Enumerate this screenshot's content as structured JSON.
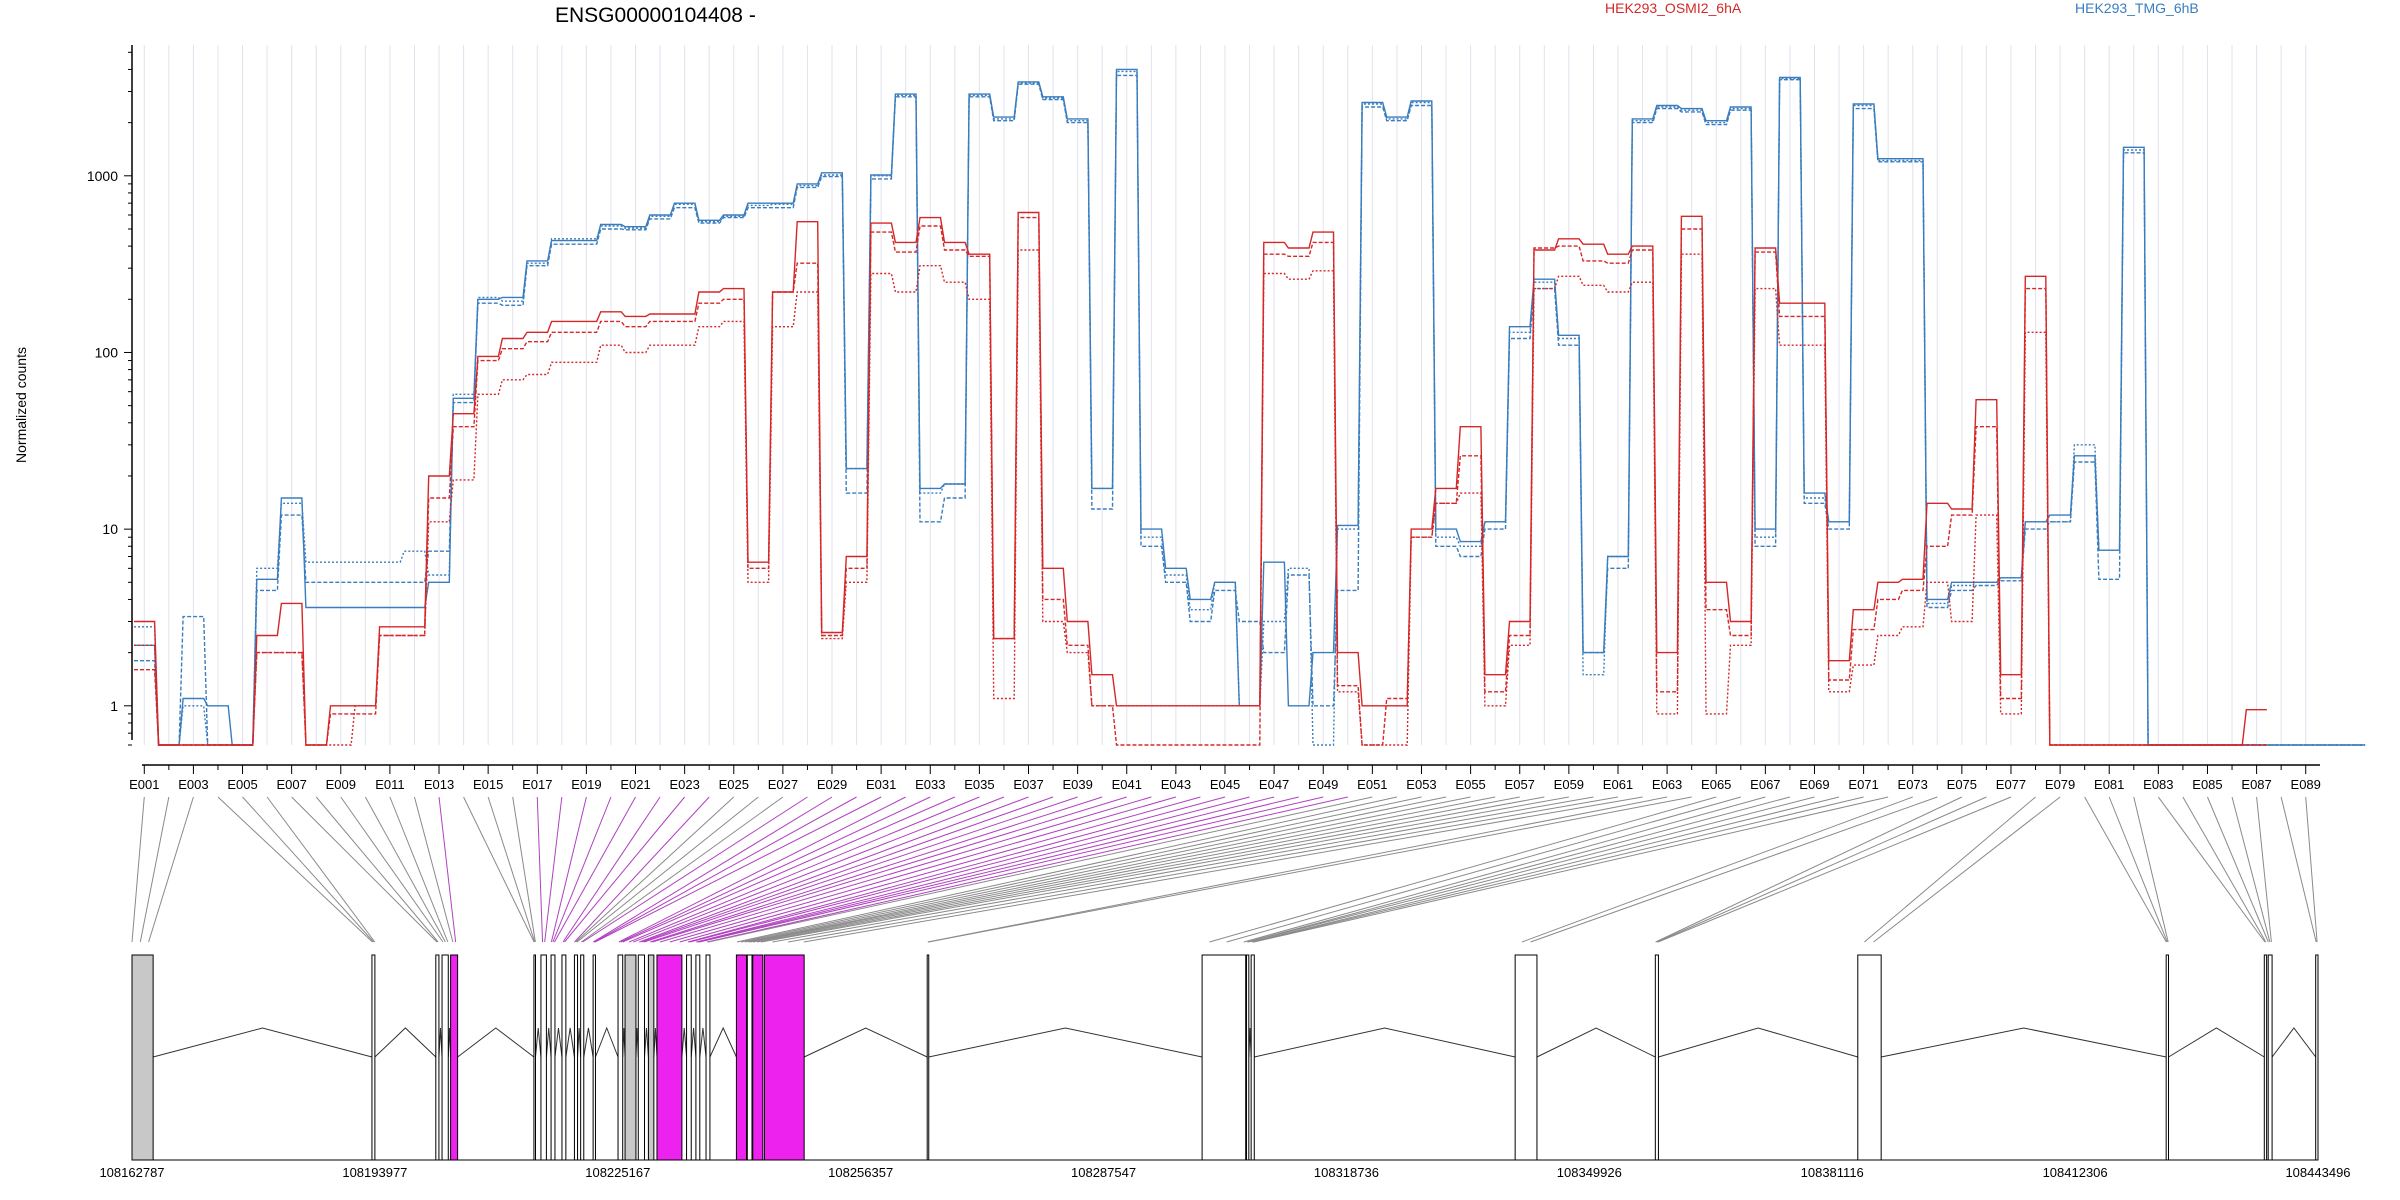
{
  "chart_data": {
    "type": "line",
    "title": "ENSG00000104408 -",
    "ylabel": "Normalized counts",
    "yscale": "log",
    "ylim": [
      0.6,
      5500
    ],
    "yticks": [
      1,
      10,
      100,
      1000
    ],
    "ytick_labels": [
      "1",
      "10",
      "100",
      "1000"
    ],
    "grid": "vertical lines per exon",
    "legend": "top-right",
    "colors": {
      "HEK293_OSMI2_6hA": "#d62728",
      "HEK293_TMG_6hB": "#3a7dbf",
      "highlight": "#ee22ee",
      "exon_fill": "#c8c8c8"
    },
    "exon_labels": [
      "E001",
      "E003",
      "E005",
      "E007",
      "E009",
      "E011",
      "E013",
      "E015",
      "E017",
      "E019",
      "E021",
      "E023",
      "E025",
      "E027",
      "E029",
      "E031",
      "E033",
      "E035",
      "E037",
      "E039",
      "E041",
      "E043",
      "E045",
      "E047",
      "E049",
      "E051",
      "E053",
      "E055",
      "E057",
      "E059",
      "E061",
      "E063",
      "E065",
      "E067",
      "E069",
      "E071",
      "E073",
      "E075",
      "E077",
      "E079",
      "E081",
      "E083",
      "E085",
      "E087",
      "E089"
    ],
    "n_exons": 89,
    "highlight_exons": [
      13,
      17,
      18,
      19,
      20,
      21,
      22,
      23,
      24,
      28,
      29,
      30,
      31,
      32,
      33,
      34,
      35,
      36,
      37,
      38,
      39,
      40,
      41,
      42,
      43,
      44,
      45,
      46,
      47,
      48,
      49,
      50
    ],
    "series": [
      {
        "name": "HEK293_TMG_6hB",
        "color": "#3a7dbf",
        "replicate": 1,
        "values": [
          2.2,
          0.6,
          1.1,
          1.0,
          0.6,
          5.2,
          15,
          3.6,
          3.6,
          3.6,
          3.6,
          3.6,
          5.0,
          55,
          200,
          205,
          330,
          430,
          430,
          530,
          515,
          600,
          700,
          560,
          600,
          700,
          700,
          900,
          1040,
          22,
          1010,
          2900,
          17,
          18,
          2900,
          2150,
          3400,
          2800,
          2100,
          17,
          4000,
          10,
          6,
          4,
          5,
          1,
          6.5,
          1,
          2,
          10.5,
          2600,
          2150,
          2650,
          10,
          8.5,
          11,
          140,
          260,
          125,
          2,
          7,
          2100,
          2500,
          2400,
          2050,
          2450,
          10,
          3600,
          16,
          11,
          2550,
          1250,
          1250,
          4,
          5,
          5,
          5.3,
          11,
          12,
          26,
          7.6,
          1450,
          0.6,
          0.6,
          0.6,
          0.6,
          0.6,
          0.6,
          0.6,
          0.6,
          0.6
        ]
      },
      {
        "name": "HEK293_TMG_6hB",
        "color": "#3a7dbf",
        "replicate": 2,
        "values": [
          1.8,
          0.6,
          3.2,
          0.6,
          0.6,
          4.5,
          12,
          5.0,
          5.0,
          5.0,
          5.0,
          5.0,
          7.5,
          52,
          190,
          185,
          310,
          410,
          410,
          500,
          495,
          570,
          660,
          540,
          580,
          660,
          660,
          860,
          990,
          16,
          960,
          2800,
          11,
          15,
          2800,
          2050,
          3300,
          2700,
          2000,
          13,
          3700,
          8,
          5,
          3,
          4.5,
          3,
          2,
          5.5,
          1,
          4.5,
          2450,
          2050,
          2500,
          8,
          7,
          10,
          120,
          230,
          110,
          2,
          6,
          2000,
          2400,
          2300,
          1950,
          2350,
          8,
          3500,
          14,
          10,
          2400,
          1200,
          1200,
          3.6,
          4.5,
          4.8,
          5.1,
          10,
          11,
          24,
          5.2,
          1350,
          0.6,
          0.6,
          0.6,
          0.6,
          0.6,
          0.6,
          0.6,
          0.6,
          0.6
        ]
      },
      {
        "name": "HEK293_TMG_6hB",
        "color": "#3a7dbf",
        "replicate": 3,
        "values": [
          2.8,
          0.6,
          1.0,
          0.6,
          0.6,
          6.0,
          14,
          6.5,
          6.5,
          6.5,
          6.5,
          7.5,
          5.5,
          58,
          205,
          195,
          320,
          440,
          440,
          520,
          505,
          590,
          690,
          550,
          590,
          680,
          690,
          880,
          1010,
          22,
          1000,
          2850,
          16,
          18,
          2850,
          2100,
          3350,
          2750,
          2050,
          17,
          3900,
          9,
          5.5,
          3.5,
          5,
          1,
          3,
          6,
          0.6,
          10,
          2550,
          2100,
          2600,
          9,
          8,
          11,
          130,
          250,
          120,
          1.5,
          7,
          2050,
          2450,
          2350,
          2000,
          2400,
          9,
          3550,
          15,
          11,
          2500,
          1220,
          1220,
          3.8,
          4.8,
          5,
          5.3,
          11,
          11,
          30,
          7.6,
          1400,
          0.6,
          0.6,
          0.6,
          0.6,
          0.6,
          0.6,
          0.6,
          0.6,
          0.6
        ]
      },
      {
        "name": "HEK293_OSMI2_6hA",
        "color": "#d62728",
        "replicate": 1,
        "values": [
          3.0,
          0.6,
          0.6,
          0.6,
          0.6,
          2.5,
          3.8,
          0.6,
          1.0,
          1.0,
          2.8,
          2.8,
          20,
          45,
          95,
          120,
          130,
          150,
          150,
          170,
          160,
          165,
          165,
          220,
          230,
          6.5,
          220,
          550,
          2.6,
          7,
          540,
          420,
          580,
          420,
          360,
          2.4,
          620,
          6,
          3,
          1.5,
          1,
          1,
          1,
          1,
          1,
          1,
          420,
          390,
          480,
          2,
          1,
          1,
          10,
          17,
          38,
          1.5,
          3,
          380,
          440,
          410,
          360,
          400,
          2,
          590,
          5,
          3,
          390,
          190,
          190,
          1.8,
          3.5,
          5,
          5.2,
          14,
          13,
          54,
          1.5,
          270,
          0.6,
          0.6,
          0.6,
          0.6,
          0.6,
          0.6,
          0.6,
          0.6,
          0.95
        ]
      },
      {
        "name": "HEK293_OSMI2_6hA",
        "color": "#d62728",
        "replicate": 2,
        "values": [
          1.6,
          0.6,
          0.6,
          0.6,
          0.6,
          2.0,
          2.0,
          0.6,
          0.9,
          0.9,
          2.5,
          2.5,
          15,
          38,
          90,
          105,
          115,
          130,
          130,
          150,
          140,
          150,
          150,
          190,
          200,
          6,
          220,
          320,
          2.5,
          6,
          480,
          370,
          520,
          380,
          350,
          2.4,
          580,
          4,
          2.2,
          1,
          0.6,
          0.6,
          0.6,
          0.6,
          0.6,
          0.6,
          360,
          350,
          420,
          1.3,
          0.6,
          1.1,
          9,
          14,
          26,
          1.2,
          2.5,
          390,
          400,
          330,
          320,
          380,
          1.2,
          500,
          3.5,
          2.5,
          370,
          160,
          160,
          1.4,
          2.7,
          4,
          4.5,
          8,
          12,
          38,
          1.1,
          230,
          0.6,
          0.6,
          0.6,
          0.6,
          0.6,
          0.6,
          0.6,
          0.6,
          0.6
        ]
      },
      {
        "name": "HEK293_OSMI2_6hA",
        "color": "#d62728",
        "replicate": 3,
        "values": [
          2.2,
          0.6,
          0.6,
          0.6,
          0.6,
          2.0,
          2.0,
          0.6,
          0.6,
          1.0,
          2.5,
          2.5,
          11,
          19,
          58,
          70,
          75,
          88,
          88,
          110,
          100,
          110,
          110,
          140,
          150,
          5,
          140,
          220,
          2.4,
          5,
          280,
          220,
          310,
          250,
          200,
          1.1,
          380,
          3,
          2,
          1,
          1,
          1,
          1,
          1,
          1,
          1,
          280,
          260,
          290,
          1.2,
          0.6,
          0.6,
          9,
          14,
          16,
          1,
          2.2,
          230,
          270,
          240,
          220,
          250,
          0.9,
          360,
          0.9,
          2.2,
          230,
          110,
          110,
          1.2,
          1.7,
          2.5,
          2.8,
          5,
          3,
          12,
          0.9,
          130,
          0.6,
          0.6,
          0.6,
          0.6,
          0.6,
          0.6,
          0.6,
          0.6,
          0.6
        ]
      }
    ],
    "genomic_coordinate_labels": [
      "108162787",
      "108193977",
      "108225167",
      "108256357",
      "108287547",
      "108318736",
      "108349926",
      "108381116",
      "108412306",
      "108443496"
    ],
    "gene_model": {
      "exons": [
        {
          "start": 108162787,
          "end": 108165500,
          "fill": "grey"
        },
        {
          "start": 108193600,
          "end": 108193977
        },
        {
          "start": 108201800,
          "end": 108202200
        },
        {
          "start": 108202600,
          "end": 108203400
        },
        {
          "start": 108203700,
          "end": 108204600,
          "fill": "highlight"
        },
        {
          "start": 108214400,
          "end": 108214600
        },
        {
          "start": 108215300,
          "end": 108216000
        },
        {
          "start": 108216600,
          "end": 108217100
        },
        {
          "start": 108218000,
          "end": 108218500
        },
        {
          "start": 108219600,
          "end": 108220000
        },
        {
          "start": 108220400,
          "end": 108220800
        },
        {
          "start": 108222000,
          "end": 108222300
        },
        {
          "start": 108225200,
          "end": 108225800
        },
        {
          "start": 108226100,
          "end": 108227500,
          "fill": "grey"
        },
        {
          "start": 108227800,
          "end": 108228600
        },
        {
          "start": 108229100,
          "end": 108229800,
          "fill": "grey"
        },
        {
          "start": 108230200,
          "end": 108233400,
          "fill": "highlight"
        },
        {
          "start": 108234000,
          "end": 108234600
        },
        {
          "start": 108235200,
          "end": 108235700
        },
        {
          "start": 108236500,
          "end": 108237000
        },
        {
          "start": 108240400,
          "end": 108241700,
          "fill": "highlight"
        },
        {
          "start": 108241800,
          "end": 108242400
        },
        {
          "start": 108242500,
          "end": 108243800,
          "fill": "highlight"
        },
        {
          "start": 108244000,
          "end": 108249100,
          "fill": "highlight"
        },
        {
          "start": 108264900,
          "end": 108265100
        },
        {
          "start": 108300200,
          "end": 108305800
        },
        {
          "start": 108305900,
          "end": 108306200
        },
        {
          "start": 108306500,
          "end": 108306900
        },
        {
          "start": 108340400,
          "end": 108343200
        },
        {
          "start": 108358400,
          "end": 108358800
        },
        {
          "start": 108384400,
          "end": 108387400
        },
        {
          "start": 108424000,
          "end": 108424300
        },
        {
          "start": 108436600,
          "end": 108436900
        },
        {
          "start": 108437100,
          "end": 108437600
        },
        {
          "start": 108443200,
          "end": 108443496
        }
      ]
    }
  }
}
